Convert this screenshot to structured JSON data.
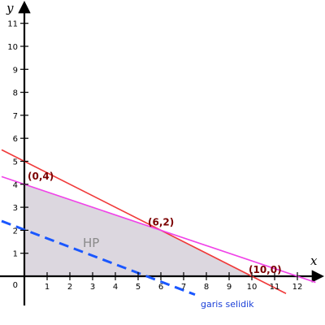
{
  "chart_data": {
    "type": "line",
    "x_label": "x",
    "y_label": "y",
    "xlim": [
      -1,
      13.2
    ],
    "ylim": [
      -1,
      12.3
    ],
    "x_ticks": [
      1,
      2,
      3,
      4,
      5,
      6,
      7,
      8,
      9,
      10,
      11,
      12
    ],
    "y_ticks": [
      1,
      2,
      3,
      4,
      5,
      6,
      7,
      8,
      9,
      10,
      11
    ],
    "origin_label": "0",
    "feasible_region": {
      "label": "HP",
      "vertices": [
        [
          0,
          0
        ],
        [
          0,
          4
        ],
        [
          6,
          2
        ],
        [
          10,
          0
        ]
      ],
      "fill_color": "#dcd7df"
    },
    "constraint_lines": [
      {
        "from": [
          -1,
          5.5
        ],
        "to": [
          11.5,
          -0.75
        ],
        "color": "#f03a3a"
      },
      {
        "from": [
          -1,
          4.333
        ],
        "to": [
          12.8,
          -0.267
        ],
        "color": "#f043e8"
      }
    ],
    "objective_line": {
      "label": "garis selidik",
      "from": [
        -1,
        2.4
      ],
      "to": [
        7.5,
        -0.8
      ],
      "color": "#1a57ff"
    },
    "points": [
      {
        "label": "(0,4)",
        "x": 0,
        "y": 4
      },
      {
        "label": "(6,2)",
        "x": 6,
        "y": 2
      },
      {
        "label": "(10,0)",
        "x": 10,
        "y": 0
      }
    ]
  }
}
